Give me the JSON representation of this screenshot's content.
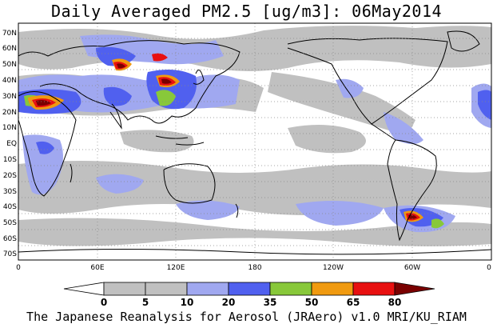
{
  "title": "Daily Averaged PM2.5 [ug/m3]: 06May2014",
  "footer": "The Japanese Reanalysis for Aerosol (JRAero) v1.0 MRI/KU_RIAM",
  "lat_labels": [
    "70N",
    "60N",
    "50N",
    "40N",
    "30N",
    "20N",
    "10N",
    "EQ",
    "10S",
    "20S",
    "30S",
    "40S",
    "50S",
    "60S",
    "70S"
  ],
  "lon_labels": [
    "0",
    "60E",
    "120E",
    "180",
    "120W",
    "60W",
    "0"
  ],
  "colorbar": {
    "levels": [
      "0",
      "5",
      "10",
      "20",
      "35",
      "50",
      "65",
      "80"
    ],
    "colors": [
      "#ffffff",
      "#c0c0c0",
      "#a0a8f0",
      "#5060ef",
      "#88c83a",
      "#f09a10",
      "#e81010",
      "#7a0000"
    ]
  }
}
